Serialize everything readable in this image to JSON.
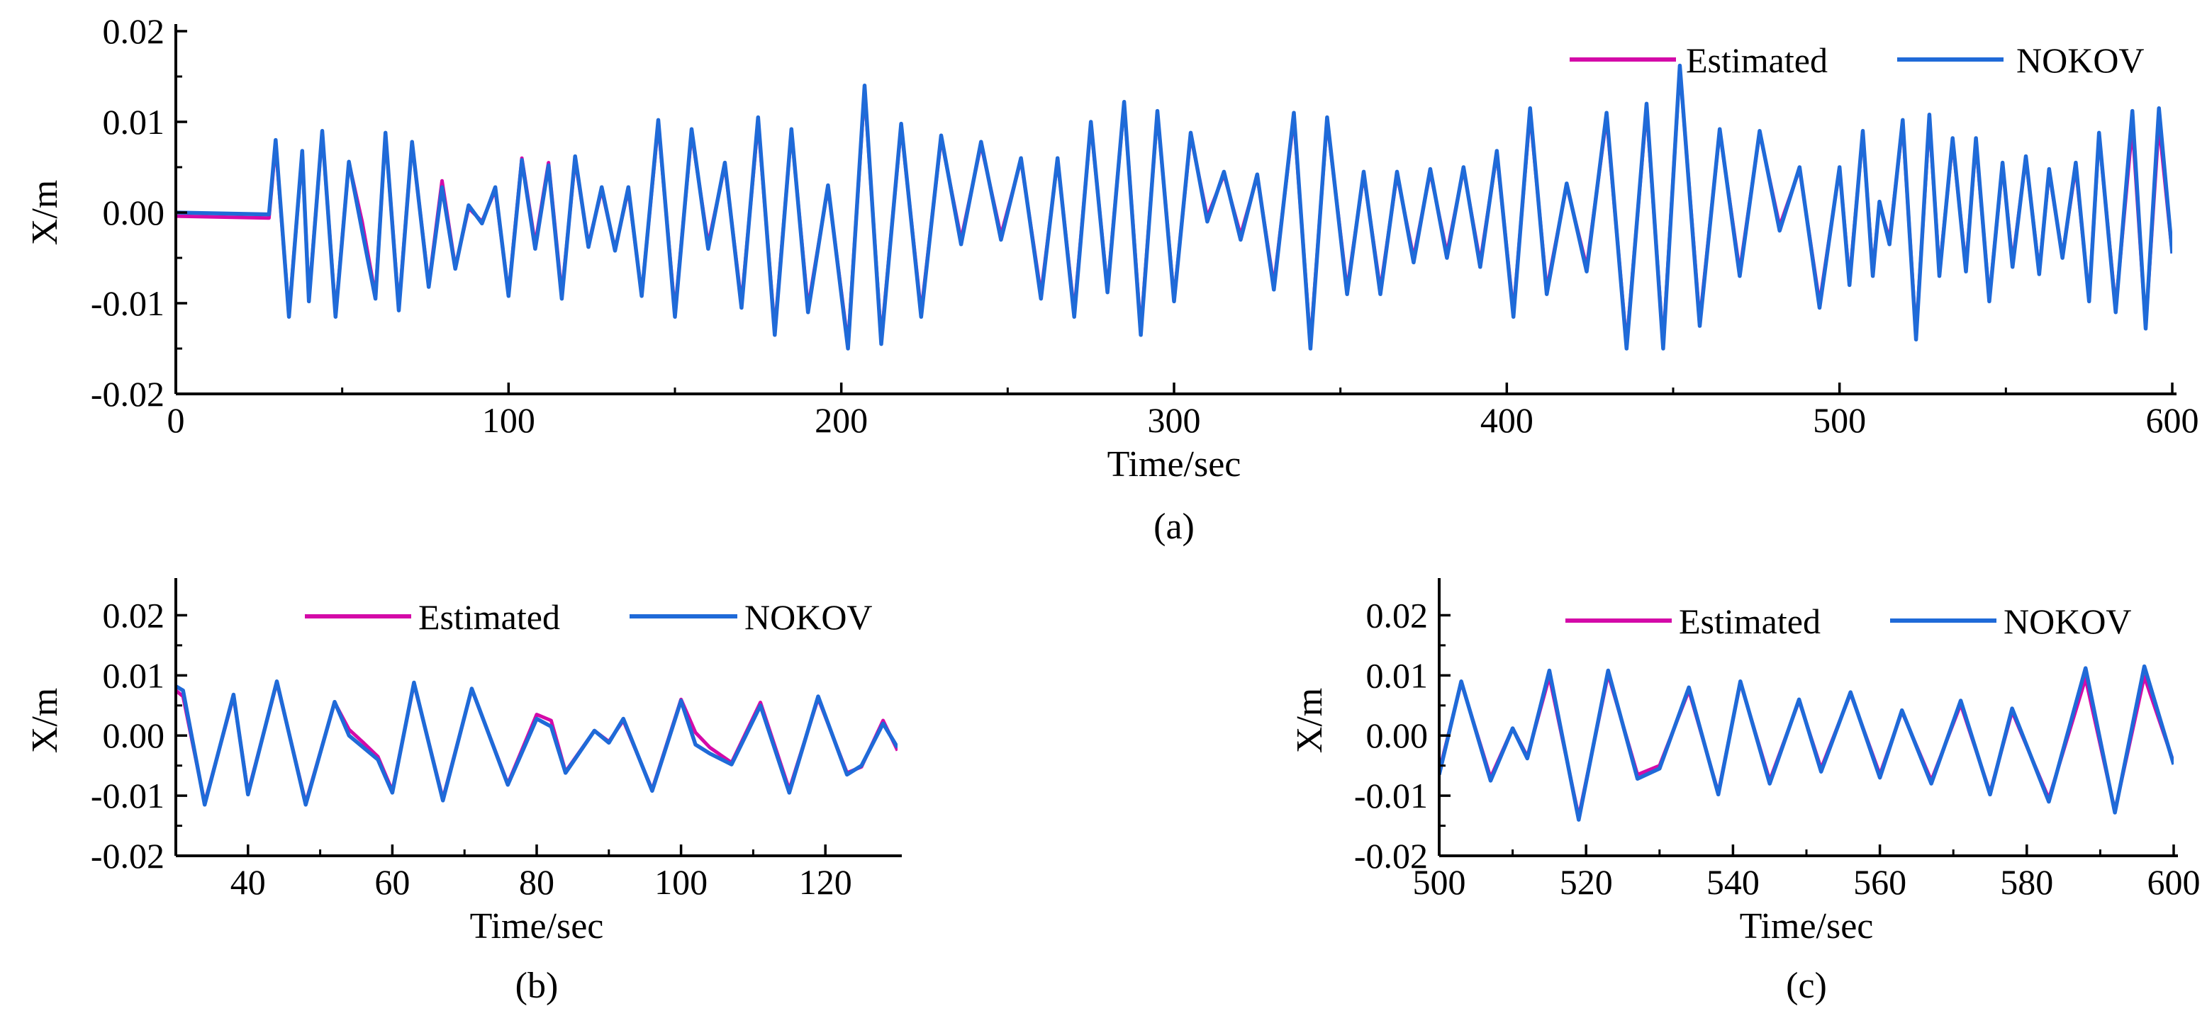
{
  "colors": {
    "estimated": "#d40aa8",
    "nokov": "#1f6ad8",
    "axis": "#000000"
  },
  "chart_data": [
    {
      "type": "line",
      "panel_label": "(a)",
      "xlabel": "Time/sec",
      "ylabel": "X/m",
      "xlim": [
        0,
        600
      ],
      "ylim": [
        -0.02,
        0.02
      ],
      "xticks": [
        0,
        100,
        200,
        300,
        400,
        500,
        600
      ],
      "xtick_labels": [
        "0",
        "100",
        "200",
        "300",
        "400",
        "500",
        "600"
      ],
      "yticks": [
        -0.02,
        -0.01,
        0.0,
        0.01,
        0.02
      ],
      "ytick_labels": [
        "-0.02",
        "-0.01",
        "0.00",
        "0.01",
        "0.02"
      ],
      "legend": {
        "position": "top-right",
        "entries": [
          "Estimated",
          "NOKOV"
        ]
      },
      "series": [
        {
          "name": "Estimated",
          "color_key": "estimated",
          "x": [
            0,
            28,
            30,
            34,
            38,
            40,
            44,
            48,
            52,
            56,
            60,
            63,
            67,
            71,
            76,
            80,
            84,
            88,
            92,
            96,
            100,
            104,
            108,
            112,
            116,
            120,
            124,
            128,
            132,
            136,
            140,
            145,
            150,
            155,
            160,
            165,
            170,
            175,
            180,
            185,
            190,
            196,
            202,
            207,
            212,
            218,
            224,
            230,
            236,
            242,
            248,
            254,
            260,
            265,
            270,
            275,
            280,
            285,
            290,
            295,
            300,
            305,
            310,
            315,
            320,
            325,
            330,
            336,
            341,
            346,
            352,
            357,
            362,
            367,
            372,
            377,
            382,
            387,
            392,
            397,
            402,
            407,
            412,
            418,
            424,
            430,
            436,
            442,
            447,
            452,
            458,
            464,
            470,
            476,
            482,
            488,
            494,
            500,
            503,
            507,
            510,
            512,
            515,
            519,
            523,
            527,
            530,
            534,
            538,
            541,
            545,
            549,
            552,
            556,
            560,
            563,
            567,
            571,
            575,
            578,
            583,
            588,
            592,
            596,
            600
          ],
          "y": [
            -0.0004,
            -0.0006,
            0.0075,
            -0.0112,
            0.0065,
            -0.0095,
            0.0088,
            -0.0112,
            0.0055,
            -0.001,
            -0.0092,
            0.0086,
            -0.0105,
            0.0077,
            -0.008,
            0.0035,
            -0.006,
            0.0005,
            -0.001,
            0.0025,
            -0.009,
            0.006,
            -0.0035,
            0.0055,
            -0.009,
            0.0058,
            -0.0035,
            0.0025,
            -0.004,
            0.0025,
            -0.009,
            0.0098,
            -0.011,
            0.0088,
            -0.0035,
            0.0052,
            -0.01,
            0.01,
            -0.013,
            0.009,
            -0.0105,
            0.0028,
            -0.0145,
            0.0135,
            -0.014,
            0.0095,
            -0.011,
            0.0082,
            -0.003,
            0.0075,
            -0.0025,
            0.0058,
            -0.009,
            0.0058,
            -0.011,
            0.0098,
            -0.0085,
            0.012,
            -0.013,
            0.011,
            -0.0095,
            0.0085,
            -0.0005,
            0.0042,
            -0.0025,
            0.004,
            -0.008,
            0.0105,
            -0.0145,
            0.0102,
            -0.0085,
            0.0042,
            -0.0085,
            0.0042,
            -0.005,
            0.0045,
            -0.0045,
            0.0048,
            -0.0055,
            0.0065,
            -0.011,
            0.011,
            -0.0085,
            0.003,
            -0.006,
            0.0105,
            -0.0145,
            0.0115,
            -0.0145,
            0.016,
            -0.012,
            0.009,
            -0.0065,
            0.0088,
            -0.0015,
            0.0048,
            -0.01,
            0.0048,
            -0.0075,
            0.0087,
            -0.0065,
            0.001,
            -0.003,
            0.0098,
            -0.0135,
            0.0102,
            -0.0065,
            0.0078,
            -0.006,
            0.0078,
            -0.0095,
            0.0052,
            -0.0055,
            0.006,
            -0.0065,
            0.0045,
            -0.0048,
            0.005,
            -0.0095,
            0.0085,
            -0.0105,
            0.0095,
            -0.0125,
            0.0098,
            -0.0045
          ]
        },
        {
          "name": "NOKOV",
          "color_key": "nokov",
          "x": [
            0,
            28,
            30,
            34,
            38,
            40,
            44,
            48,
            52,
            56,
            60,
            63,
            67,
            71,
            76,
            80,
            84,
            88,
            92,
            96,
            100,
            104,
            108,
            112,
            116,
            120,
            124,
            128,
            132,
            136,
            140,
            145,
            150,
            155,
            160,
            165,
            170,
            175,
            180,
            185,
            190,
            196,
            202,
            207,
            212,
            218,
            224,
            230,
            236,
            242,
            248,
            254,
            260,
            265,
            270,
            275,
            280,
            285,
            290,
            295,
            300,
            305,
            310,
            315,
            320,
            325,
            330,
            336,
            341,
            346,
            352,
            357,
            362,
            367,
            372,
            377,
            382,
            387,
            392,
            397,
            402,
            407,
            412,
            418,
            424,
            430,
            436,
            442,
            447,
            452,
            458,
            464,
            470,
            476,
            482,
            488,
            494,
            500,
            503,
            507,
            510,
            512,
            515,
            519,
            523,
            527,
            530,
            534,
            538,
            541,
            545,
            549,
            552,
            556,
            560,
            563,
            567,
            571,
            575,
            578,
            583,
            588,
            592,
            596,
            600
          ],
          "y": [
            0.0,
            -0.0002,
            0.008,
            -0.0115,
            0.0068,
            -0.0098,
            0.009,
            -0.0115,
            0.0056,
            -0.002,
            -0.0095,
            0.0088,
            -0.0108,
            0.0078,
            -0.0082,
            0.0028,
            -0.0062,
            0.0008,
            -0.0012,
            0.0028,
            -0.0092,
            0.0058,
            -0.004,
            0.0052,
            -0.0095,
            0.0062,
            -0.0038,
            0.0028,
            -0.0042,
            0.0028,
            -0.0092,
            0.0102,
            -0.0115,
            0.0092,
            -0.004,
            0.0055,
            -0.0105,
            0.0105,
            -0.0135,
            0.0092,
            -0.011,
            0.003,
            -0.015,
            0.014,
            -0.0145,
            0.0098,
            -0.0115,
            0.0085,
            -0.0035,
            0.0078,
            -0.003,
            0.006,
            -0.0095,
            0.006,
            -0.0115,
            0.01,
            -0.0088,
            0.0122,
            -0.0135,
            0.0112,
            -0.0098,
            0.0088,
            -0.001,
            0.0045,
            -0.003,
            0.0042,
            -0.0085,
            0.011,
            -0.015,
            0.0105,
            -0.009,
            0.0045,
            -0.009,
            0.0045,
            -0.0055,
            0.0048,
            -0.005,
            0.005,
            -0.006,
            0.0068,
            -0.0115,
            0.0115,
            -0.009,
            0.0032,
            -0.0065,
            0.011,
            -0.015,
            0.012,
            -0.015,
            0.0162,
            -0.0125,
            0.0092,
            -0.007,
            0.009,
            -0.002,
            0.005,
            -0.0105,
            0.005,
            -0.008,
            0.009,
            -0.007,
            0.0012,
            -0.0035,
            0.0102,
            -0.014,
            0.0108,
            -0.007,
            0.0082,
            -0.0065,
            0.0082,
            -0.0098,
            0.0055,
            -0.006,
            0.0062,
            -0.0068,
            0.0048,
            -0.005,
            0.0055,
            -0.0098,
            0.0088,
            -0.011,
            0.0112,
            -0.0128,
            0.0115,
            -0.0045
          ]
        }
      ]
    },
    {
      "type": "line",
      "panel_label": "(b)",
      "xlabel": "Time/sec",
      "ylabel": "X/m",
      "xlim": [
        30,
        130
      ],
      "ylim": [
        -0.02,
        0.025
      ],
      "xticks": [
        40,
        60,
        80,
        100,
        120
      ],
      "xtick_labels": [
        "40",
        "60",
        "80",
        "100",
        "120"
      ],
      "yticks": [
        -0.02,
        -0.01,
        0.0,
        0.01,
        0.02
      ],
      "ytick_labels": [
        "-0.02",
        "-0.01",
        "0.00",
        "0.01",
        "0.02"
      ],
      "legend": {
        "position": "top",
        "entries": [
          "Estimated",
          "NOKOV"
        ]
      },
      "series": [
        {
          "name": "Estimated",
          "color_key": "estimated",
          "x": [
            30,
            31,
            34,
            38,
            40,
            44,
            48,
            52,
            54,
            56,
            58,
            60,
            63,
            67,
            71,
            76,
            80,
            82,
            84,
            88,
            90,
            92,
            96,
            100,
            102,
            104,
            107,
            111,
            115,
            119,
            123,
            125,
            128,
            130
          ],
          "y": [
            0.0075,
            0.0065,
            -0.0112,
            0.0065,
            -0.0095,
            0.0088,
            -0.0112,
            0.0055,
            0.001,
            -0.0012,
            -0.0035,
            -0.0092,
            0.0086,
            -0.0105,
            0.0077,
            -0.008,
            0.0035,
            0.0025,
            -0.006,
            0.0008,
            -0.001,
            0.0025,
            -0.009,
            0.006,
            0.0005,
            -0.002,
            -0.0045,
            0.0055,
            -0.009,
            0.0062,
            -0.0062,
            -0.0052,
            0.0025,
            -0.0025
          ]
        },
        {
          "name": "NOKOV",
          "color_key": "nokov",
          "x": [
            30,
            31,
            34,
            38,
            40,
            44,
            48,
            52,
            54,
            56,
            58,
            60,
            63,
            67,
            71,
            76,
            80,
            82,
            84,
            88,
            90,
            92,
            96,
            100,
            102,
            104,
            107,
            111,
            115,
            119,
            123,
            125,
            128,
            130
          ],
          "y": [
            0.0082,
            0.0075,
            -0.0115,
            0.0068,
            -0.0098,
            0.009,
            -0.0115,
            0.0056,
            0.0,
            -0.002,
            -0.004,
            -0.0095,
            0.0088,
            -0.0108,
            0.0078,
            -0.0082,
            0.0028,
            0.0015,
            -0.0062,
            0.0008,
            -0.0012,
            0.0028,
            -0.0092,
            0.0058,
            -0.0015,
            -0.003,
            -0.0048,
            0.005,
            -0.0095,
            0.0065,
            -0.0065,
            -0.005,
            0.002,
            -0.002
          ]
        }
      ]
    },
    {
      "type": "line",
      "panel_label": "(c)",
      "xlabel": "Time/sec",
      "ylabel": "X/m",
      "xlim": [
        500,
        600
      ],
      "ylim": [
        -0.02,
        0.025
      ],
      "xticks": [
        500,
        520,
        540,
        560,
        580,
        600
      ],
      "xtick_labels": [
        "500",
        "520",
        "540",
        "560",
        "580",
        "600"
      ],
      "yticks": [
        -0.02,
        -0.01,
        0.0,
        0.01,
        0.02
      ],
      "ytick_labels": [
        "-0.02",
        "-0.01",
        "0.00",
        "0.01",
        "0.02"
      ],
      "legend": {
        "position": "top",
        "entries": [
          "Estimated",
          "NOKOV"
        ]
      },
      "series": [
        {
          "name": "Estimated",
          "color_key": "estimated",
          "x": [
            500,
            503,
            507,
            510,
            512,
            515,
            519,
            523,
            527,
            530,
            534,
            538,
            541,
            545,
            549,
            552,
            556,
            560,
            563,
            567,
            571,
            575,
            578,
            583,
            588,
            592,
            596,
            600
          ],
          "y": [
            -0.006,
            0.0088,
            -0.007,
            0.0012,
            -0.0035,
            0.0098,
            -0.0135,
            0.0102,
            -0.0065,
            -0.005,
            0.0075,
            -0.0095,
            0.0088,
            -0.0075,
            0.0058,
            -0.0055,
            0.007,
            -0.0065,
            0.004,
            -0.0075,
            0.0052,
            -0.0095,
            0.004,
            -0.0105,
            0.0095,
            -0.0125,
            0.0098,
            -0.0045
          ]
        },
        {
          "name": "NOKOV",
          "color_key": "nokov",
          "x": [
            500,
            503,
            507,
            510,
            512,
            515,
            519,
            523,
            527,
            530,
            534,
            538,
            541,
            545,
            549,
            552,
            556,
            560,
            563,
            567,
            571,
            575,
            578,
            583,
            588,
            592,
            596,
            600
          ],
          "y": [
            -0.0065,
            0.009,
            -0.0075,
            0.0012,
            -0.0038,
            0.0108,
            -0.014,
            0.0108,
            -0.0072,
            -0.0055,
            0.008,
            -0.0098,
            0.009,
            -0.008,
            0.006,
            -0.006,
            0.0072,
            -0.007,
            0.0042,
            -0.008,
            0.0058,
            -0.0098,
            0.0045,
            -0.011,
            0.0112,
            -0.0128,
            0.0115,
            -0.0048
          ]
        }
      ]
    }
  ]
}
